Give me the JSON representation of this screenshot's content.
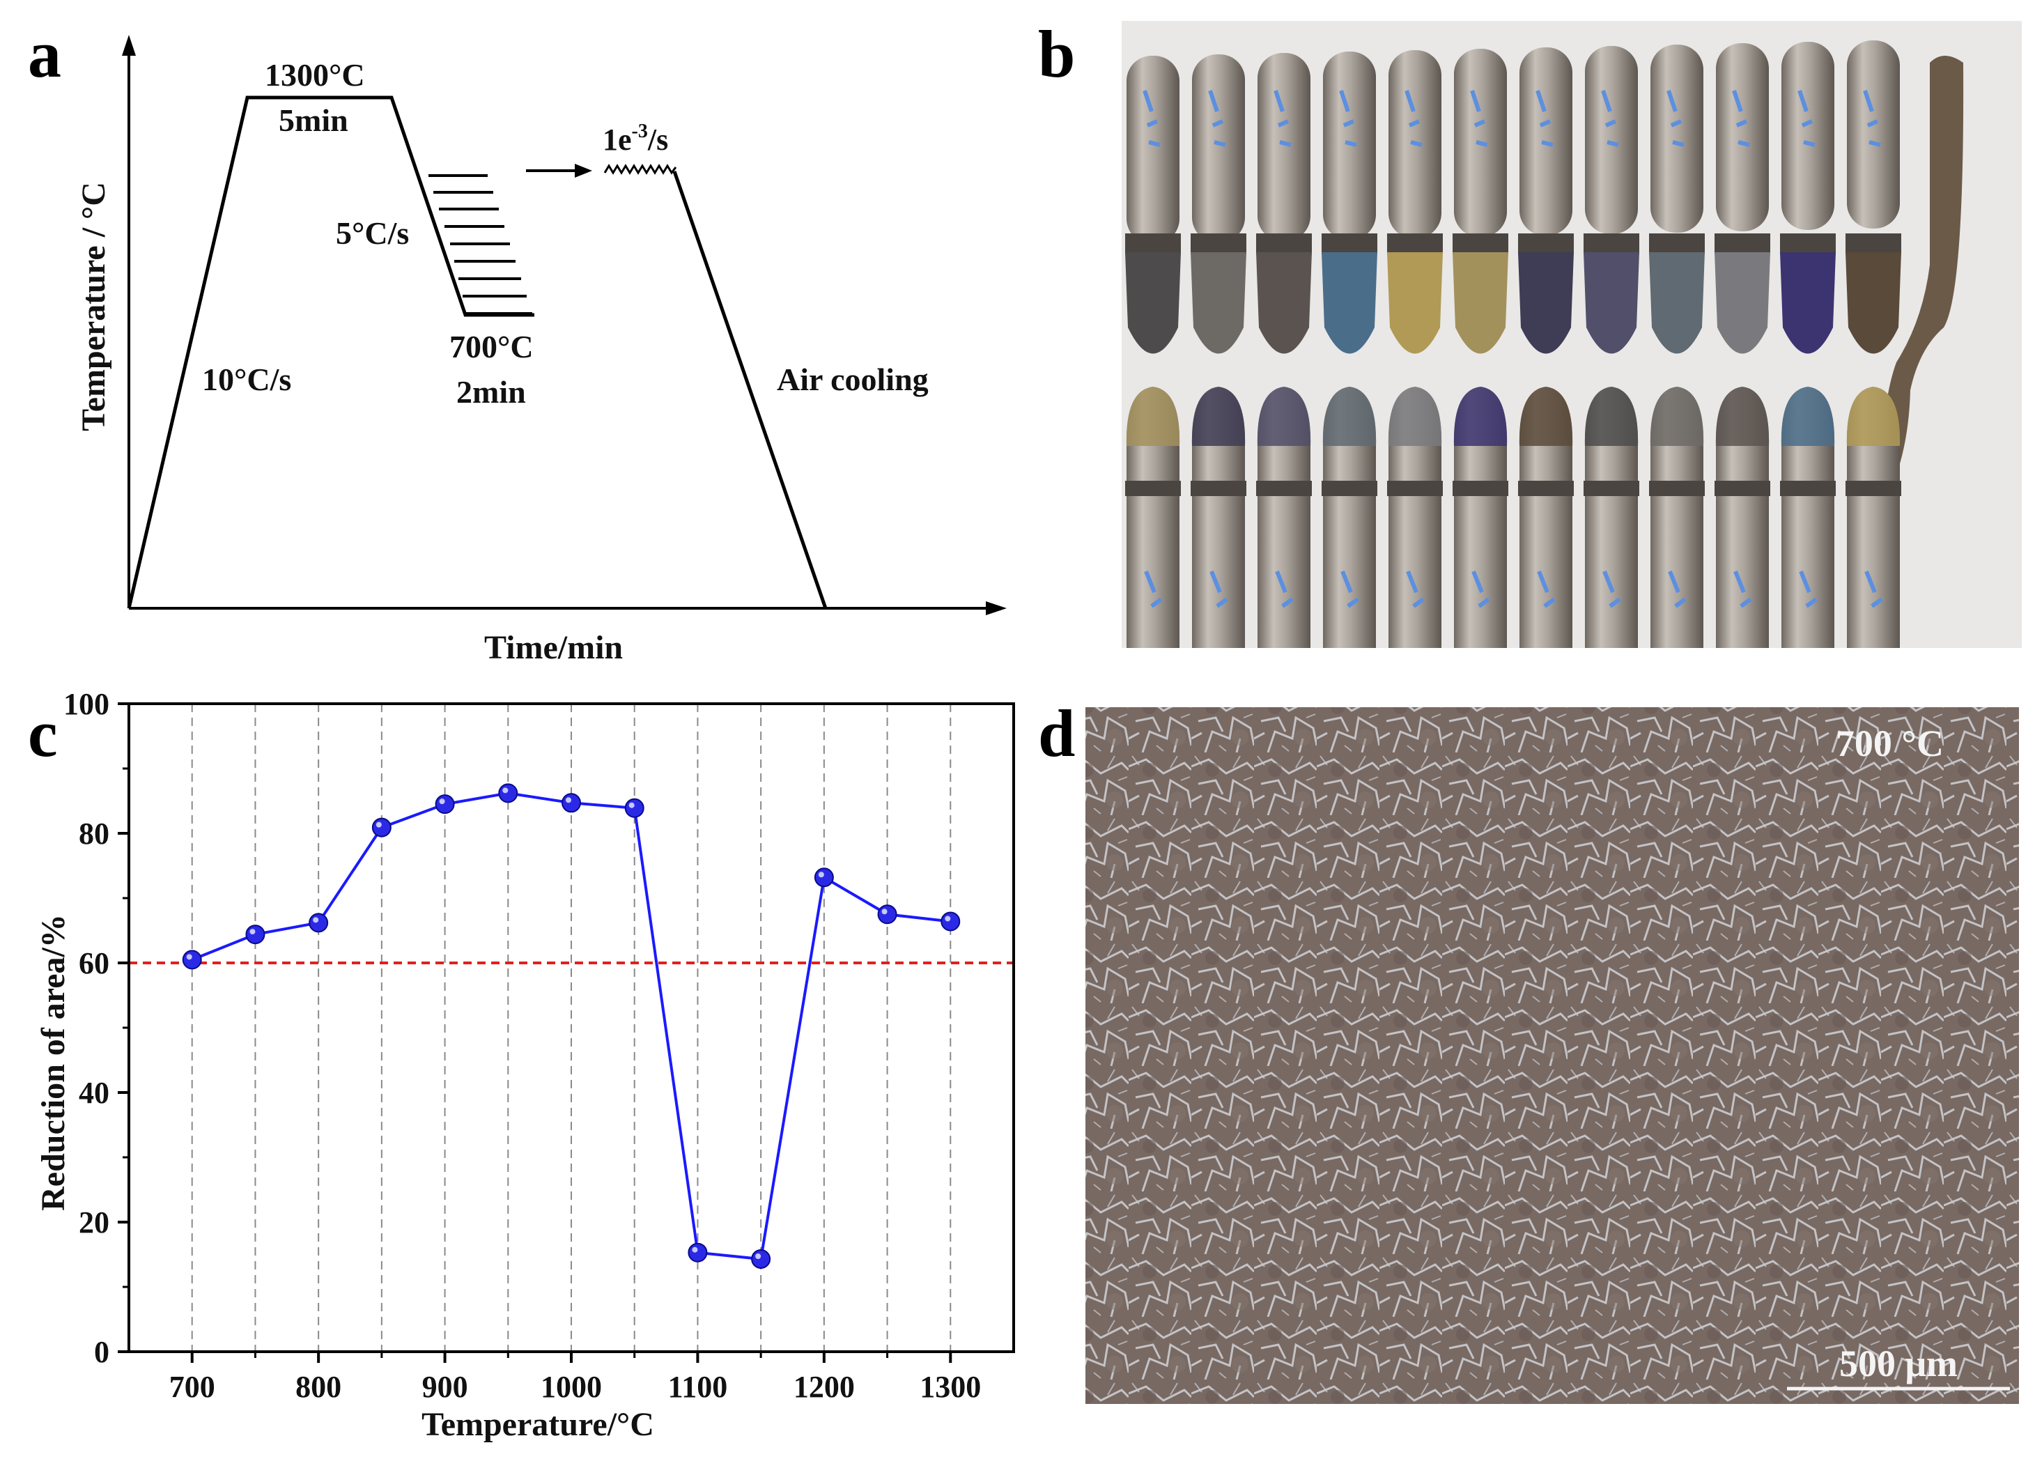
{
  "panels": {
    "a": {
      "letter": "a",
      "xlabel": "Time/min",
      "ylabel": "Temperature / °C",
      "soak_temp": "1300°C",
      "soak_time": "5min",
      "heating_rate": "10°C/s",
      "cooling_rate": "5°C/s",
      "test_temp": "700°C",
      "hold_time": "2min",
      "strain_rate_base": "1e",
      "strain_rate_exp": "-3",
      "strain_rate_unit": "/s",
      "final_cooling": "Air cooling"
    },
    "b": {
      "letter": "b"
    },
    "c": {
      "letter": "c"
    },
    "d": {
      "letter": "d",
      "temp_label": "700 °C",
      "scale_bar": "500 μm"
    }
  },
  "colors": {
    "line": "#1a1aff",
    "marker": "#2a2ae6",
    "threshold": "#e02020",
    "steel": "#a89f96",
    "micrograph_bg": "#7a6c66",
    "marker_text": "#5c8fe0"
  },
  "chart_data": {
    "type": "line",
    "x": [
      700,
      750,
      800,
      850,
      900,
      950,
      1000,
      1050,
      1100,
      1150,
      1200,
      1250,
      1300
    ],
    "series": [
      {
        "values": [
          60.5,
          64.4,
          66.2,
          80.9,
          84.5,
          86.2,
          84.7,
          83.9,
          15.3,
          14.3,
          73.2,
          67.5,
          66.4
        ]
      }
    ],
    "threshold": 60,
    "xlabel": "Temperature/°C",
    "ylabel": "Reduction of area/%",
    "xlim": [
      650,
      1350
    ],
    "ylim": [
      0,
      100
    ],
    "xticks": [
      "700",
      "800",
      "900",
      "1000",
      "1100",
      "1200",
      "1300"
    ],
    "yticks": [
      "0",
      "20",
      "40",
      "60",
      "80",
      "100"
    ],
    "grid": "vertical dashed"
  }
}
